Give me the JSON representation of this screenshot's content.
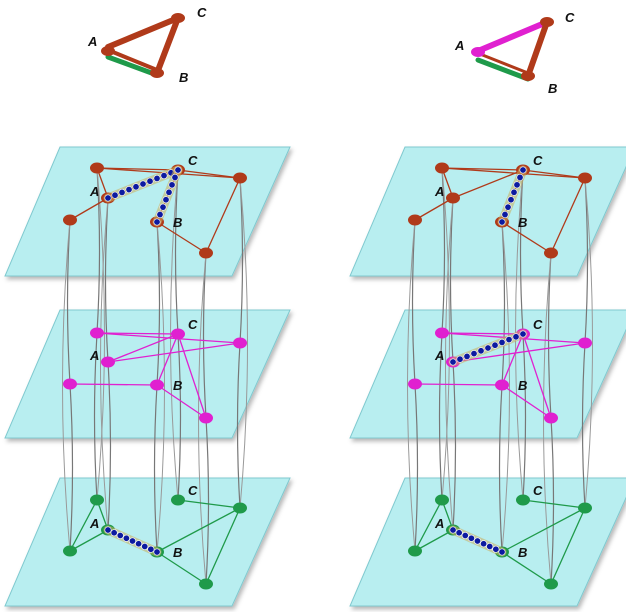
{
  "colors": {
    "plane_fill": "#b8eef0",
    "plane_edge": "#7fc9cf",
    "top_layer": "#b03a1a",
    "middle_layer": "#e020d0",
    "bottom_layer": "#1f9a4a",
    "path_dot": "#0c1aa0",
    "interlayer_line": "#777777"
  },
  "legend_left": {
    "name": "top-left-triangle",
    "labels": {
      "a": "A",
      "b": "B",
      "c": "C"
    },
    "edge_colors": {
      "ac": "#b03a1a",
      "cb": "#b03a1a",
      "ab": "#1f9a4a"
    }
  },
  "legend_right": {
    "name": "top-right-triangle",
    "labels": {
      "a": "A",
      "b": "B",
      "c": "C"
    },
    "edge_colors": {
      "ac": "#e020d0",
      "cb": "#b03a1a",
      "ab": "#1f9a4a"
    }
  },
  "panels": [
    {
      "name": "left-stack",
      "layers": [
        {
          "name": "top",
          "labels": {
            "a": "A",
            "b": "B",
            "c": "C"
          }
        },
        {
          "name": "middle",
          "labels": {
            "a": "A",
            "b": "B",
            "c": "C"
          }
        },
        {
          "name": "bottom",
          "labels": {
            "a": "A",
            "b": "B",
            "c": "C"
          }
        }
      ]
    },
    {
      "name": "right-stack",
      "layers": [
        {
          "name": "top",
          "labels": {
            "a": "A",
            "b": "B",
            "c": "C"
          }
        },
        {
          "name": "middle",
          "labels": {
            "a": "A",
            "b": "B",
            "c": "C"
          }
        },
        {
          "name": "bottom",
          "labels": {
            "a": "A",
            "b": "B",
            "c": "C"
          }
        }
      ]
    }
  ]
}
